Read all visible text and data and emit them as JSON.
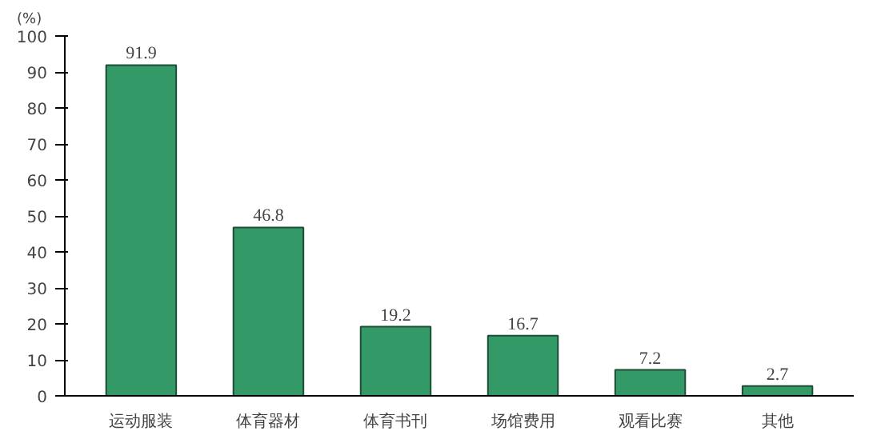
{
  "chart_data": {
    "type": "bar",
    "ylabel": "(%)",
    "categories": [
      "运动服装",
      "体育器材",
      "体育书刊",
      "场馆费用",
      "观看比赛",
      "其他"
    ],
    "values": [
      91.9,
      46.8,
      19.2,
      16.7,
      7.2,
      2.7
    ],
    "color": "#339966",
    "ylim": [
      0,
      100
    ],
    "yticks": [
      0,
      10,
      20,
      30,
      40,
      50,
      60,
      70,
      80,
      90,
      100
    ],
    "data_labels": true,
    "grid": false
  }
}
